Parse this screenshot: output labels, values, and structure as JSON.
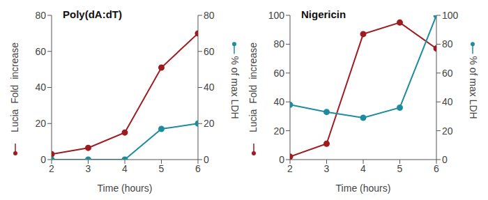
{
  "chart_data": [
    {
      "type": "line",
      "title": "Poly(dA:dT)",
      "x": [
        2,
        3,
        4,
        5,
        6
      ],
      "xlim": [
        2,
        6
      ],
      "xticks": [
        2,
        3,
        4,
        5,
        6
      ],
      "xlabel": "Time (hours)",
      "ylabel": "Lucia  Fold  increase",
      "ylim": [
        0,
        80
      ],
      "yticks": [
        0,
        20,
        40,
        60,
        80
      ],
      "y2label": "% of max LDH",
      "y2lim": [
        0,
        80
      ],
      "y2ticks": [
        0,
        20,
        40,
        60,
        80
      ],
      "grid": false,
      "series": [
        {
          "name": "Lucia  Fold  increase",
          "color": "#9e1b20",
          "marker": "o",
          "line_style": "solid",
          "values": [
            3,
            6.5,
            15,
            51,
            70
          ]
        },
        {
          "name": "% of max LDH",
          "color": "#1e8c9e",
          "marker": "o",
          "line_style": "solid",
          "axis": "y2",
          "values": [
            0,
            0,
            0,
            17,
            20
          ]
        }
      ]
    },
    {
      "type": "line",
      "title": "Nigericin",
      "x": [
        2,
        3,
        4,
        5,
        6
      ],
      "xlim": [
        2,
        6
      ],
      "xticks": [
        2,
        3,
        4,
        5,
        6
      ],
      "xlabel": "Time (hours)",
      "ylabel": "Lucia  Fold  increase",
      "ylim": [
        0,
        100
      ],
      "yticks": [
        0,
        20,
        40,
        60,
        80,
        100
      ],
      "y2label": "% of max LDH",
      "y2lim": [
        0,
        100
      ],
      "y2ticks": [
        0,
        20,
        40,
        60,
        80,
        100
      ],
      "grid": false,
      "series": [
        {
          "name": "Lucia  Fold  increase",
          "color": "#9e1b20",
          "marker": "o",
          "line_style": "solid",
          "values": [
            2,
            11,
            87,
            95,
            77
          ]
        },
        {
          "name": "% of max LDH",
          "color": "#1e8c9e",
          "marker": "o",
          "line_style": "solid",
          "axis": "y2",
          "values": [
            38,
            33,
            29,
            36,
            100
          ]
        }
      ]
    }
  ]
}
